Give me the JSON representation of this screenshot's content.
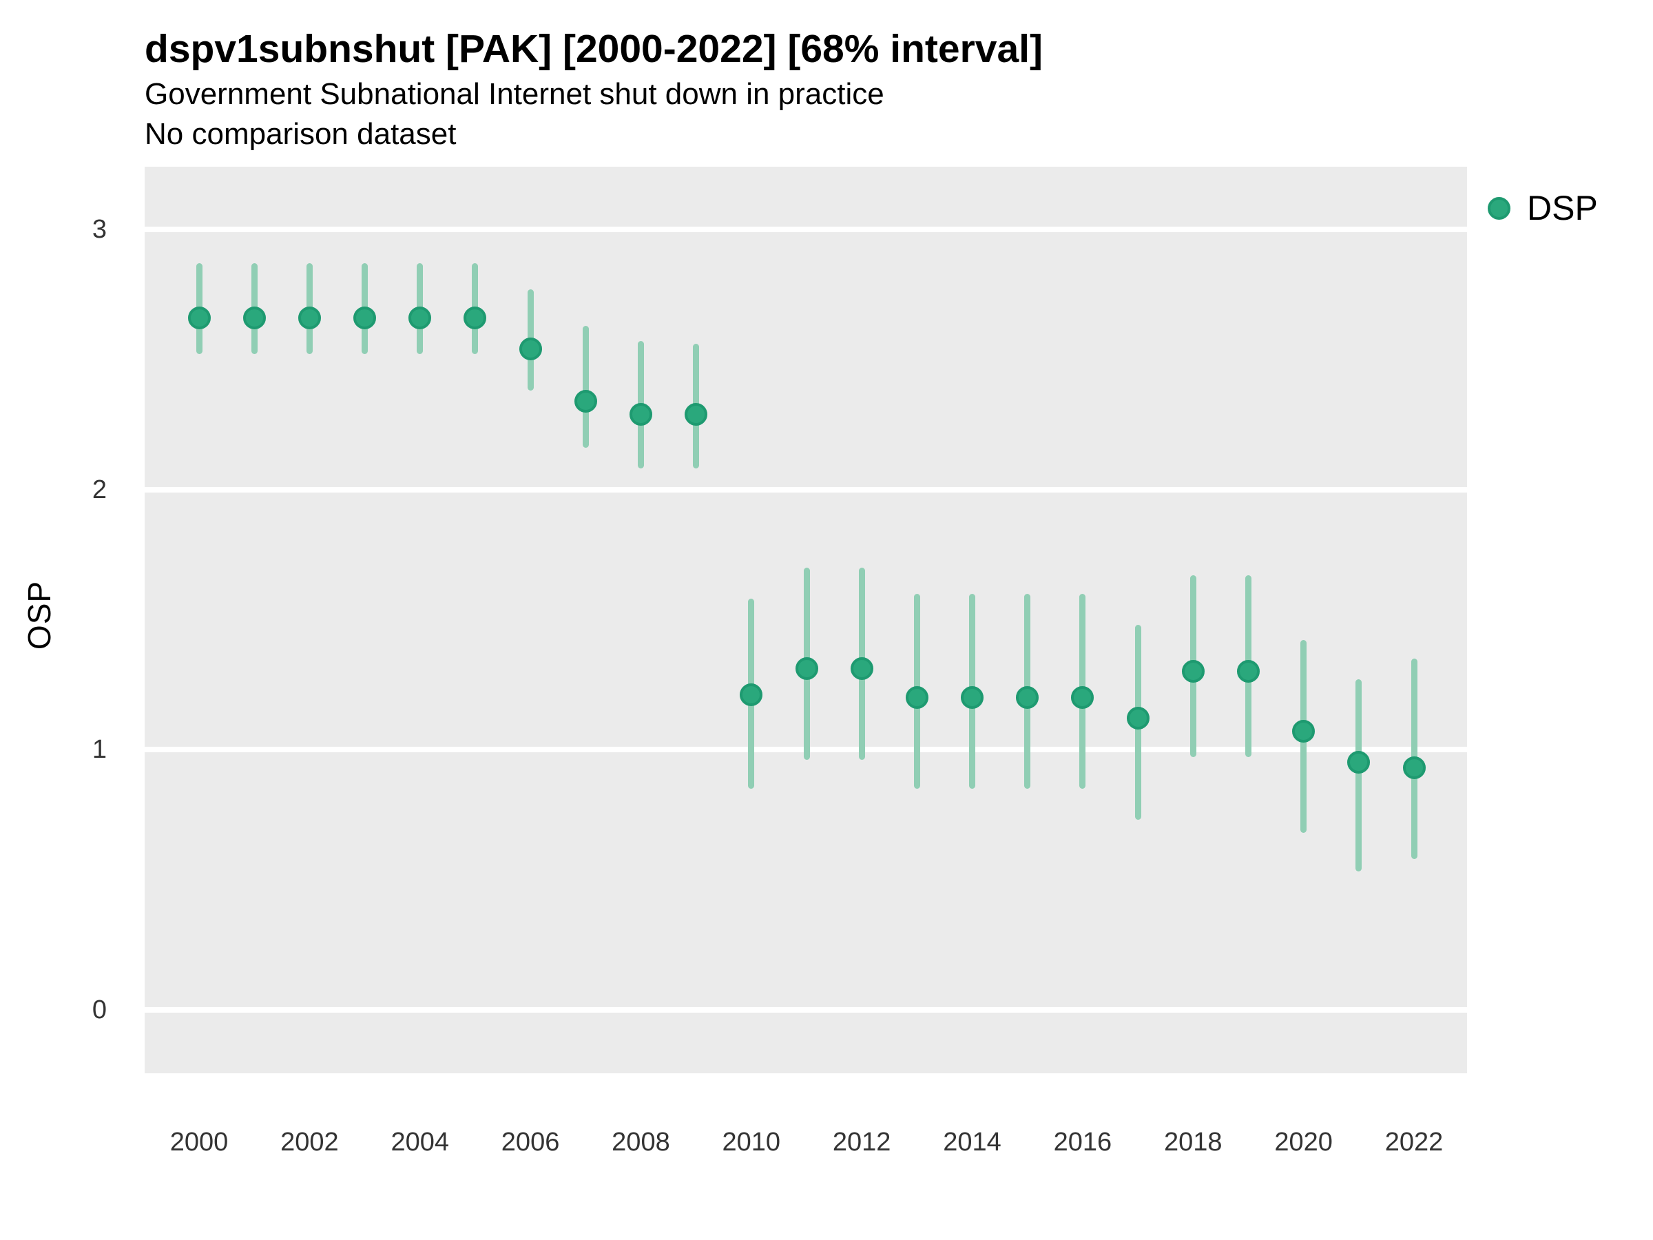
{
  "header": {
    "title": "dspv1subnshut [PAK] [2000-2022] [68% interval]",
    "subtitle": "Government Subnational Internet shut down in practice",
    "note": "No comparison dataset"
  },
  "axes": {
    "y_title": "OSP",
    "y_ticks": [
      {
        "label": "3",
        "value": 3
      },
      {
        "label": "2",
        "value": 2
      },
      {
        "label": "1",
        "value": 1
      },
      {
        "label": "0",
        "value": 0
      }
    ],
    "x_ticks": [
      {
        "label": "2000",
        "year": 2000
      },
      {
        "label": "2002",
        "year": 2002
      },
      {
        "label": "2004",
        "year": 2004
      },
      {
        "label": "2006",
        "year": 2006
      },
      {
        "label": "2008",
        "year": 2008
      },
      {
        "label": "2010",
        "year": 2010
      },
      {
        "label": "2012",
        "year": 2012
      },
      {
        "label": "2014",
        "year": 2014
      },
      {
        "label": "2016",
        "year": 2016
      },
      {
        "label": "2018",
        "year": 2018
      },
      {
        "label": "2020",
        "year": 2020
      },
      {
        "label": "2022",
        "year": 2022
      }
    ]
  },
  "legend": {
    "items": [
      {
        "label": "DSP"
      }
    ]
  },
  "colors": {
    "panel_bg": "#EBEBEB",
    "gridline": "#FFFFFF",
    "point_fill": "#2AA87C",
    "point_stroke": "#1E9A70",
    "interval_bar": "#90CEB4",
    "tick_text": "#333333"
  },
  "chart_data": {
    "type": "scatter",
    "title": "dspv1subnshut [PAK] [2000-2022] [68% interval]",
    "subtitle": "Government Subnational Internet shut down in practice",
    "note": "No comparison dataset",
    "interval": "68%",
    "country": "PAK",
    "xlabel": "",
    "ylabel": "OSP",
    "xlim": [
      1999,
      2023
    ],
    "ylim": [
      -0.25,
      3.25
    ],
    "grid": "major-horizontal",
    "legend_position": "top-right",
    "series": [
      {
        "name": "DSP",
        "x": [
          2000,
          2001,
          2002,
          2003,
          2004,
          2005,
          2006,
          2007,
          2008,
          2009,
          2010,
          2011,
          2012,
          2013,
          2014,
          2015,
          2016,
          2017,
          2018,
          2019,
          2020,
          2021,
          2022
        ],
        "y": [
          2.66,
          2.66,
          2.66,
          2.66,
          2.66,
          2.66,
          2.54,
          2.34,
          2.29,
          2.29,
          1.21,
          1.31,
          1.31,
          1.2,
          1.2,
          1.2,
          1.2,
          1.12,
          1.3,
          1.3,
          1.07,
          0.95,
          0.93
        ],
        "y_low": [
          2.52,
          2.52,
          2.52,
          2.52,
          2.52,
          2.52,
          2.38,
          2.16,
          2.08,
          2.08,
          0.85,
          0.96,
          0.96,
          0.85,
          0.85,
          0.85,
          0.85,
          0.73,
          0.97,
          0.97,
          0.68,
          0.53,
          0.58
        ],
        "y_high": [
          2.87,
          2.87,
          2.87,
          2.87,
          2.87,
          2.87,
          2.77,
          2.63,
          2.57,
          2.56,
          1.58,
          1.7,
          1.7,
          1.6,
          1.6,
          1.6,
          1.6,
          1.48,
          1.67,
          1.67,
          1.42,
          1.27,
          1.35
        ]
      }
    ]
  }
}
